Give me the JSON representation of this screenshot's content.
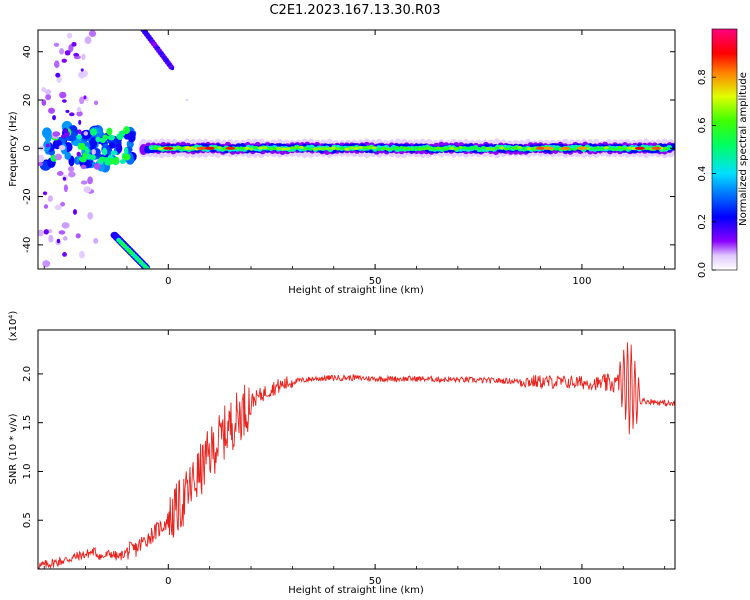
{
  "figure": {
    "title": "C2E1.2023.167.13.30.R03"
  },
  "colorbar": {
    "label": "Normalized spectral amplitude",
    "ticks": [
      "0.0",
      "0.2",
      "0.4",
      "0.6",
      "0.8"
    ],
    "range": [
      0,
      1
    ]
  },
  "chart_data": [
    {
      "type": "heatmap",
      "xlabel": "Height of straight line (km)",
      "ylabel": "Frequency (Hz)",
      "xlim": [
        -31.5,
        122.5
      ],
      "ylim": [
        -50,
        49
      ],
      "xticks": [
        "0",
        "50",
        "100"
      ],
      "yticks": [
        "-40",
        "-20",
        "0",
        "20",
        "40"
      ],
      "colormap": "rainbow (0 white/violet, 0.2 blue, 0.4 cyan, 0.6 green/yellow, 0.8 red, 1 magenta)",
      "features": [
        {
          "name": "main band",
          "x_range": [
            -5,
            122
          ],
          "freq_center": 0,
          "freq_halfwidth": 3,
          "amplitude": 0.5
        },
        {
          "name": "strong spots",
          "x_range": [
            -28,
            -10
          ],
          "freq_range": [
            -7,
            9
          ],
          "amplitude": 0.6
        },
        {
          "name": "lower streak",
          "x_range": [
            -12,
            -5
          ],
          "freq_range": [
            -50,
            -37
          ],
          "amplitude": 0.5
        },
        {
          "name": "upper streak",
          "x_range": [
            -6,
            1
          ],
          "freq_range": [
            35,
            49
          ],
          "amplitude": 0.2
        }
      ]
    },
    {
      "type": "line",
      "xlabel": "Height of straight line (km)",
      "ylabel": "SNR (10 * v/v)",
      "yunit": "(x10⁴)",
      "xlim": [
        -31.5,
        122.5
      ],
      "ylim": [
        0,
        2.45
      ],
      "xticks": [
        "0",
        "50",
        "100"
      ],
      "yticks": [
        "0.5",
        "1.0",
        "1.5",
        "2.0"
      ],
      "color": "#e8231e",
      "series": [
        {
          "x": [
            -31,
            -28,
            -25,
            -22,
            -20,
            -18,
            -16,
            -14,
            -12,
            -10,
            -8,
            -6,
            -4,
            -2,
            0,
            2,
            4,
            6,
            8,
            10,
            12,
            14,
            16,
            18,
            20,
            25,
            30,
            35,
            40,
            45,
            50,
            60,
            70,
            80,
            90,
            100,
            105,
            108,
            110,
            112,
            114,
            116,
            118,
            120,
            122
          ],
          "values": [
            0.03,
            0.06,
            0.09,
            0.13,
            0.15,
            0.18,
            0.12,
            0.16,
            0.12,
            0.18,
            0.2,
            0.28,
            0.35,
            0.42,
            0.5,
            0.6,
            0.72,
            0.88,
            1.02,
            1.18,
            1.3,
            1.42,
            1.52,
            1.62,
            1.72,
            1.85,
            1.92,
            1.95,
            1.96,
            1.96,
            1.95,
            1.95,
            1.94,
            1.93,
            1.92,
            1.91,
            1.9,
            1.9,
            1.93,
            1.85,
            1.72,
            1.72,
            1.71,
            1.7,
            1.69
          ]
        }
      ]
    }
  ]
}
